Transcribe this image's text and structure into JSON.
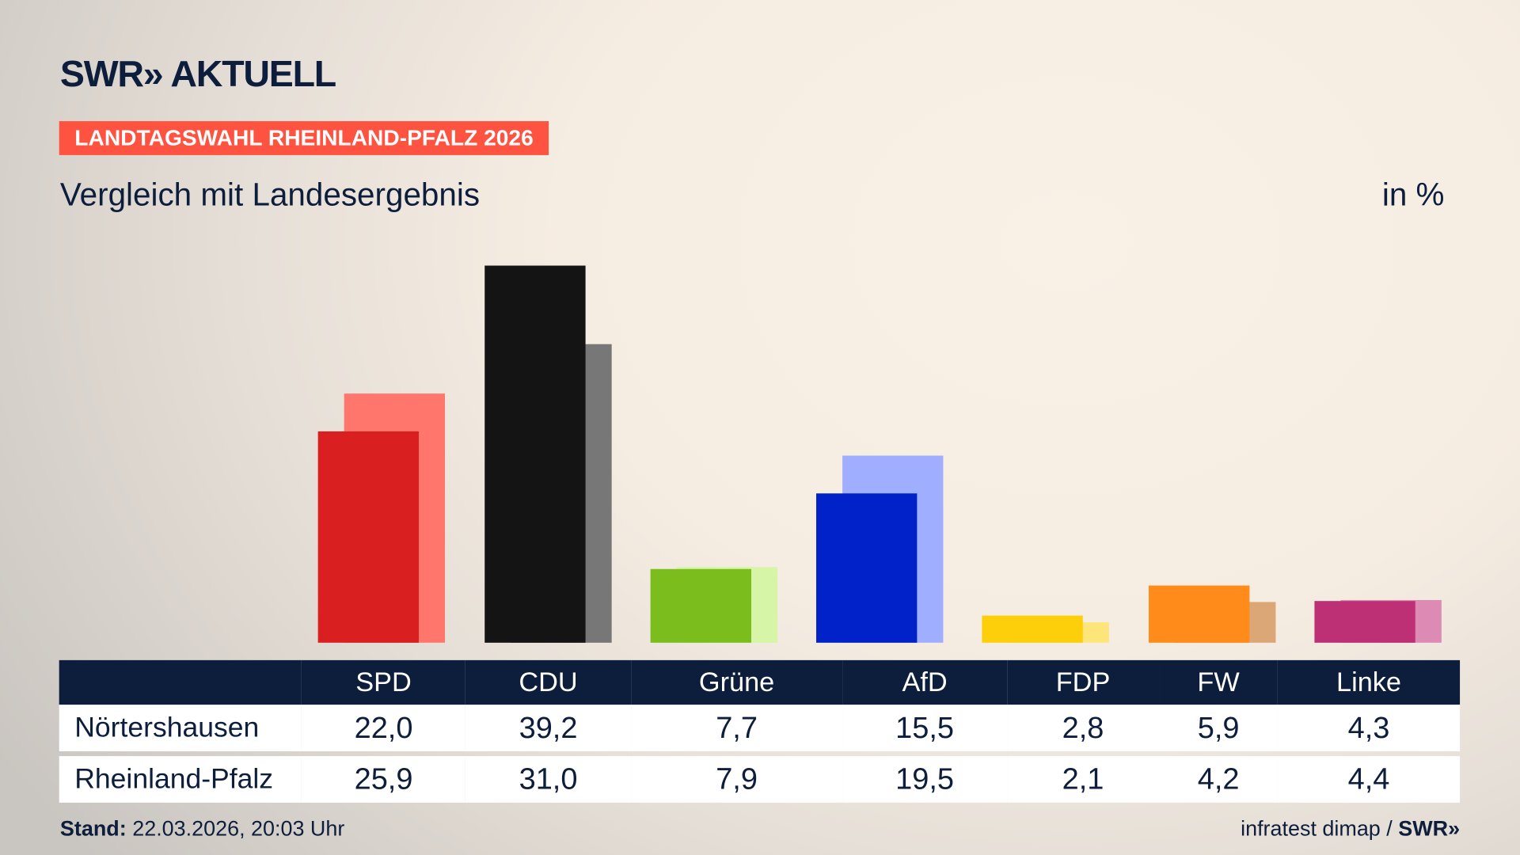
{
  "header": {
    "logo": "SWR» AKTUELL",
    "badge": "LANDTAGSWAHL RHEINLAND-PFALZ 2026",
    "subtitle": "Vergleich mit Landesergebnis",
    "unit": "in %"
  },
  "footer": {
    "stand_label": "Stand:",
    "stand_value": "22.03.2026, 20:03 Uhr",
    "source": "infratest dimap /",
    "source_logo": "SWR»"
  },
  "chart_data": {
    "type": "bar",
    "categories": [
      "SPD",
      "CDU",
      "Grüne",
      "AfD",
      "FDP",
      "FW",
      "Linke"
    ],
    "series": [
      {
        "name": "Nörtershausen",
        "values": [
          22.0,
          39.2,
          7.7,
          15.5,
          2.8,
          5.9,
          4.3
        ],
        "display": [
          "22,0",
          "39,2",
          "7,7",
          "15,5",
          "2,8",
          "5,9",
          "4,3"
        ]
      },
      {
        "name": "Rheinland-Pfalz",
        "values": [
          25.9,
          31.0,
          7.9,
          19.5,
          2.1,
          4.2,
          4.4
        ],
        "display": [
          "25,9",
          "31,0",
          "7,9",
          "19,5",
          "2,1",
          "4,2",
          "4,4"
        ]
      }
    ],
    "colors": {
      "primary": [
        "#d91f1f",
        "#141414",
        "#7abd1c",
        "#0022c8",
        "#fdcf0a",
        "#ff8c1a",
        "#be3075"
      ],
      "secondary": [
        "#ff766d",
        "#777777",
        "#d6f5a6",
        "#a0aeff",
        "#fde57a",
        "#dca777",
        "#dd8ab4"
      ]
    },
    "ylim": [
      0,
      40
    ],
    "grid": false,
    "legend": "table-below"
  }
}
